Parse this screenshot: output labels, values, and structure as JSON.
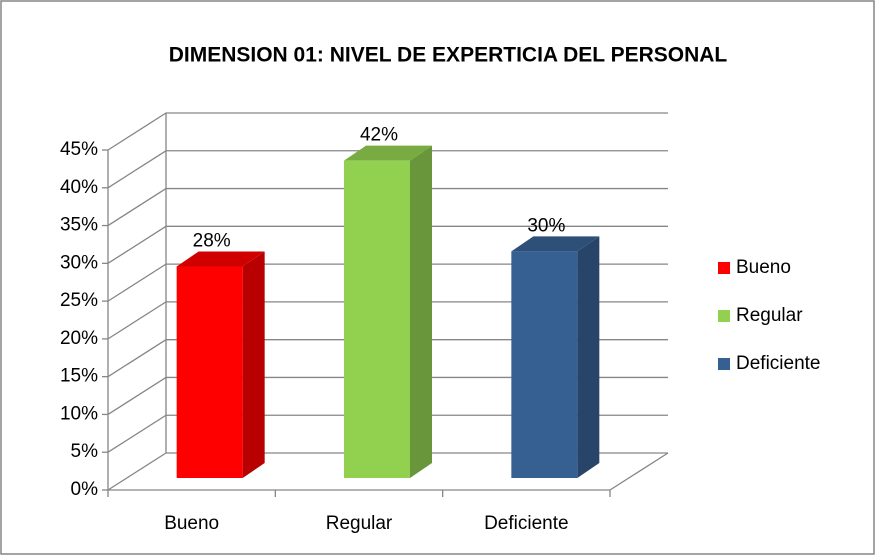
{
  "chart_data": {
    "type": "bar3d",
    "title": "DIMENSION 01: NIVEL DE EXPERTICIA DEL PERSONAL",
    "categories": [
      "Bueno",
      "Regular",
      "Deficiente"
    ],
    "values": [
      28,
      42,
      30
    ],
    "value_labels": [
      "28%",
      "42%",
      "30%"
    ],
    "colors": [
      "#ff0000",
      "#92d050",
      "#376092"
    ],
    "ylim": [
      0,
      45
    ],
    "yticks": [
      {
        "value": 0,
        "label": "0%"
      },
      {
        "value": 5,
        "label": "5%"
      },
      {
        "value": 10,
        "label": "10%"
      },
      {
        "value": 15,
        "label": "15%"
      },
      {
        "value": 20,
        "label": "20%"
      },
      {
        "value": 25,
        "label": "25%"
      },
      {
        "value": 30,
        "label": "30%"
      },
      {
        "value": 35,
        "label": "35%"
      },
      {
        "value": 40,
        "label": "40%"
      },
      {
        "value": 45,
        "label": "45%"
      }
    ],
    "grid": true,
    "legend": "right"
  }
}
